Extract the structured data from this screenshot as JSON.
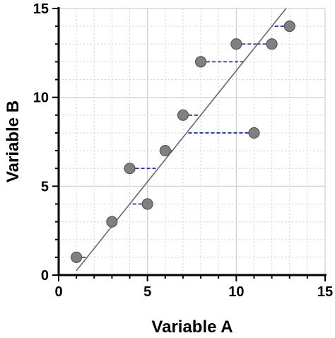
{
  "chart_data": {
    "type": "scatter",
    "xlabel": "Variable A",
    "ylabel": "Variable B",
    "xlim": [
      0,
      15
    ],
    "ylim": [
      0,
      15
    ],
    "x_ticks": [
      0,
      5,
      10,
      15
    ],
    "y_ticks": [
      0,
      5,
      10,
      15
    ],
    "grid": true,
    "points": [
      {
        "x": 1,
        "y": 1
      },
      {
        "x": 3,
        "y": 3
      },
      {
        "x": 4,
        "y": 6
      },
      {
        "x": 5,
        "y": 4
      },
      {
        "x": 6,
        "y": 7
      },
      {
        "x": 7,
        "y": 9
      },
      {
        "x": 8,
        "y": 12
      },
      {
        "x": 10,
        "y": 13
      },
      {
        "x": 11,
        "y": 8
      },
      {
        "x": 12,
        "y": 13
      },
      {
        "x": 13,
        "y": 14
      }
    ],
    "fit_line": {
      "x": [
        1,
        12.8
      ],
      "y": [
        0.25,
        15
      ]
    },
    "colors": {
      "point_fill": "#808080",
      "point_stroke": "#555555",
      "fit_line": "#666666",
      "residual": "#1f3a93",
      "grid": "#cfcfcf"
    }
  }
}
